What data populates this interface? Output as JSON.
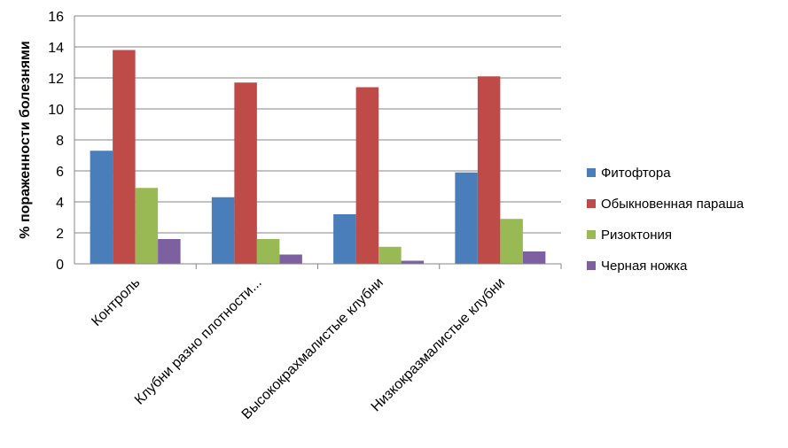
{
  "chart_data": {
    "type": "bar",
    "title": "",
    "xlabel": "",
    "ylabel": "% пораженности  болезнями",
    "ylim": [
      0,
      16
    ],
    "yticks": [
      0,
      2,
      4,
      6,
      8,
      10,
      12,
      14,
      16
    ],
    "grid": true,
    "legend_position": "right",
    "categories": [
      "Контроль",
      "Клубни разно плотности...",
      "Высококрахмалистые клубни",
      "Низкокразмалистые клубни"
    ],
    "series": [
      {
        "name": "Фитофтора",
        "color": "#4a7ebb",
        "values": [
          7.3,
          4.3,
          3.2,
          5.9
        ]
      },
      {
        "name": "Обыкновенная параша",
        "color": "#be4b48",
        "values": [
          13.8,
          11.7,
          11.4,
          12.1
        ]
      },
      {
        "name": "Ризоктония",
        "color": "#98b954",
        "values": [
          4.9,
          1.6,
          1.1,
          2.9
        ]
      },
      {
        "name": "Черная ножка",
        "color": "#7d60a0",
        "values": [
          1.6,
          0.6,
          0.2,
          0.8
        ]
      }
    ]
  }
}
